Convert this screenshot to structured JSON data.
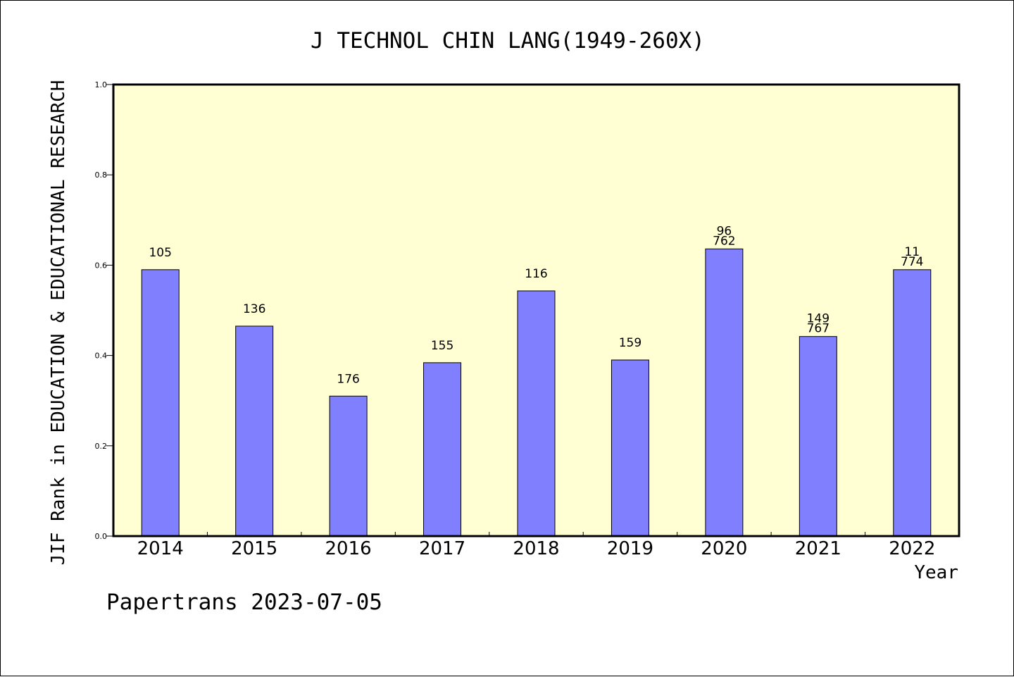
{
  "chart_data": {
    "type": "bar",
    "title": "J TECHNOL CHIN LANG(1949-260X)",
    "xlabel": "Year",
    "ylabel": "JIF Rank in EDUCATION & EDUCATIONAL RESEARCH",
    "ylim": [
      0,
      1.0
    ],
    "yticks": [
      "0.0",
      "0.2",
      "0.4",
      "0.6",
      "0.8",
      "1.0"
    ],
    "categories": [
      "2014",
      "2015",
      "2016",
      "2017",
      "2018",
      "2019",
      "2020",
      "2021",
      "2022"
    ],
    "values": [
      0.59,
      0.465,
      0.31,
      0.384,
      0.543,
      0.39,
      0.636,
      0.442,
      0.59
    ],
    "bar_labels": [
      [
        "105"
      ],
      [
        "136"
      ],
      [
        "176"
      ],
      [
        "155"
      ],
      [
        "116"
      ],
      [
        "159"
      ],
      [
        "96",
        "762"
      ],
      [
        "149",
        "767"
      ],
      [
        "11",
        "774"
      ]
    ],
    "grid": false,
    "colors": {
      "bar": "#8080ff",
      "plot_background": "#ffffd3"
    }
  },
  "footer": {
    "credit": "Papertrans 2023-07-05"
  }
}
